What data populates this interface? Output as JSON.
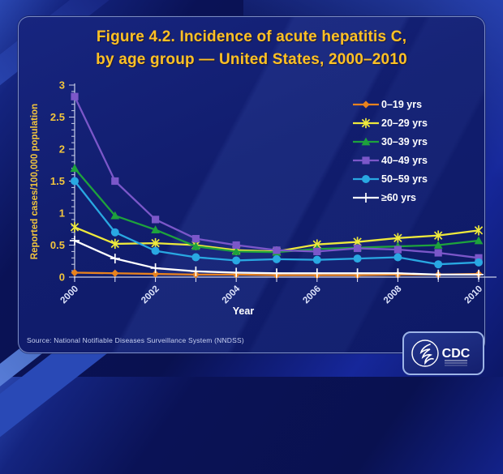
{
  "slide": {
    "title_line1": "Figure 4.2. Incidence of acute hepatitis C,",
    "title_line2": "by age group — United States, 2000–2010",
    "source": "Source: National Notifiable Diseases Surveillance System (NNDSS)",
    "logo_text": "CDC"
  },
  "colors": {
    "title_gold": "#ffc125",
    "axis_label_yellow": "#f2c53d",
    "tick_label_lavender": "#dce2fa",
    "axis_line": "#c9cfe8",
    "legend_text": "#ffffff",
    "panel_navy": "#111d6e"
  },
  "chart_data": {
    "type": "line",
    "title": "Incidence of acute hepatitis C, by age group — United States, 2000–2010",
    "xlabel": "Year",
    "ylabel": "Reported cases/100,000 population",
    "x": [
      2000,
      2001,
      2002,
      2003,
      2004,
      2005,
      2006,
      2007,
      2008,
      2009,
      2010
    ],
    "x_labeled_ticks": [
      2000,
      2002,
      2004,
      2006,
      2008,
      2010
    ],
    "ylim": [
      0,
      3
    ],
    "y_major_ticks": [
      0,
      0.5,
      1,
      1.5,
      2,
      2.5,
      3
    ],
    "y_minor_step": 0.1,
    "grid": false,
    "legend_position": "upper right",
    "series": [
      {
        "name": "0–19 yrs",
        "color": "#e8821e",
        "marker": "diamond",
        "values": [
          0.07,
          0.06,
          0.05,
          0.04,
          0.04,
          0.03,
          0.03,
          0.03,
          0.04,
          0.04,
          0.05
        ]
      },
      {
        "name": "20–29 yrs",
        "color": "#eee93c",
        "marker": "asterisk",
        "values": [
          0.78,
          0.52,
          0.53,
          0.5,
          0.42,
          0.4,
          0.51,
          0.55,
          0.61,
          0.65,
          0.73
        ]
      },
      {
        "name": "30–39 yrs",
        "color": "#1ea23c",
        "marker": "triangle",
        "values": [
          1.7,
          0.96,
          0.74,
          0.48,
          0.4,
          0.39,
          0.44,
          0.46,
          0.48,
          0.5,
          0.57
        ]
      },
      {
        "name": "40–49 yrs",
        "color": "#7b57c9",
        "marker": "square",
        "values": [
          2.82,
          1.5,
          0.9,
          0.6,
          0.5,
          0.42,
          0.4,
          0.45,
          0.43,
          0.38,
          0.3
        ]
      },
      {
        "name": "50–59 yrs",
        "color": "#29a8e2",
        "marker": "circle",
        "values": [
          1.5,
          0.7,
          0.41,
          0.31,
          0.26,
          0.28,
          0.27,
          0.29,
          0.31,
          0.2,
          0.23
        ]
      },
      {
        "name": "≥60 yrs",
        "color": "#ffffff",
        "marker": "plus",
        "values": [
          0.57,
          0.29,
          0.14,
          0.09,
          0.07,
          0.06,
          0.06,
          0.06,
          0.06,
          0.04,
          0.04
        ]
      }
    ]
  }
}
